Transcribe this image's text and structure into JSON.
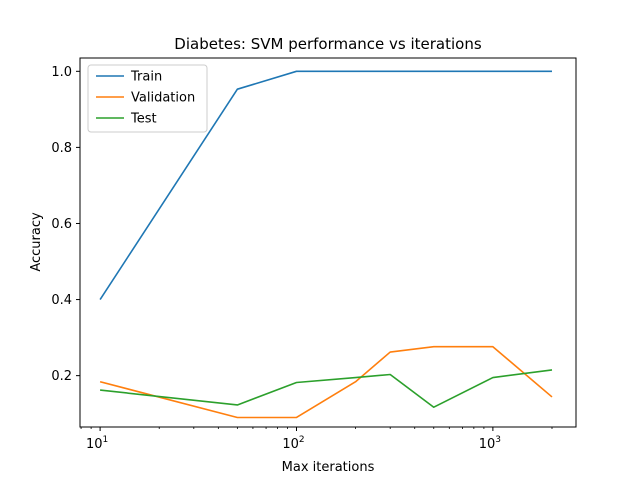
{
  "chart_data": {
    "type": "line",
    "title": "Diabetes: SVM performance vs iterations",
    "xlabel": "Max iterations",
    "ylabel": "Accuracy",
    "xscale": "log",
    "xlim": [
      7.9,
      2650
    ],
    "ylim": [
      0.065,
      1.035
    ],
    "x": [
      10,
      50,
      100,
      200,
      300,
      500,
      1000,
      2000
    ],
    "xticks": [
      {
        "value": 10,
        "base": "10",
        "exp": "1"
      },
      {
        "value": 100,
        "base": "10",
        "exp": "2"
      },
      {
        "value": 1000,
        "base": "10",
        "exp": "3"
      }
    ],
    "yticks": [
      {
        "value": 0.2,
        "label": "0.2"
      },
      {
        "value": 0.4,
        "label": "0.4"
      },
      {
        "value": 0.6,
        "label": "0.6"
      },
      {
        "value": 0.8,
        "label": "0.8"
      },
      {
        "value": 1.0,
        "label": "1.0"
      }
    ],
    "grid": false,
    "legend_position": "top-left",
    "series": [
      {
        "name": "Train",
        "color": "#1f77b4",
        "values": [
          0.4,
          0.953,
          1.0,
          1.0,
          1.0,
          1.0,
          1.0,
          1.0
        ]
      },
      {
        "name": "Validation",
        "color": "#ff7f0e",
        "values": [
          0.184,
          0.09,
          0.09,
          0.184,
          0.262,
          0.276,
          0.276,
          0.144
        ]
      },
      {
        "name": "Test",
        "color": "#2ca02c",
        "values": [
          0.162,
          0.123,
          0.182,
          0.195,
          0.203,
          0.117,
          0.195,
          0.215
        ]
      }
    ]
  }
}
